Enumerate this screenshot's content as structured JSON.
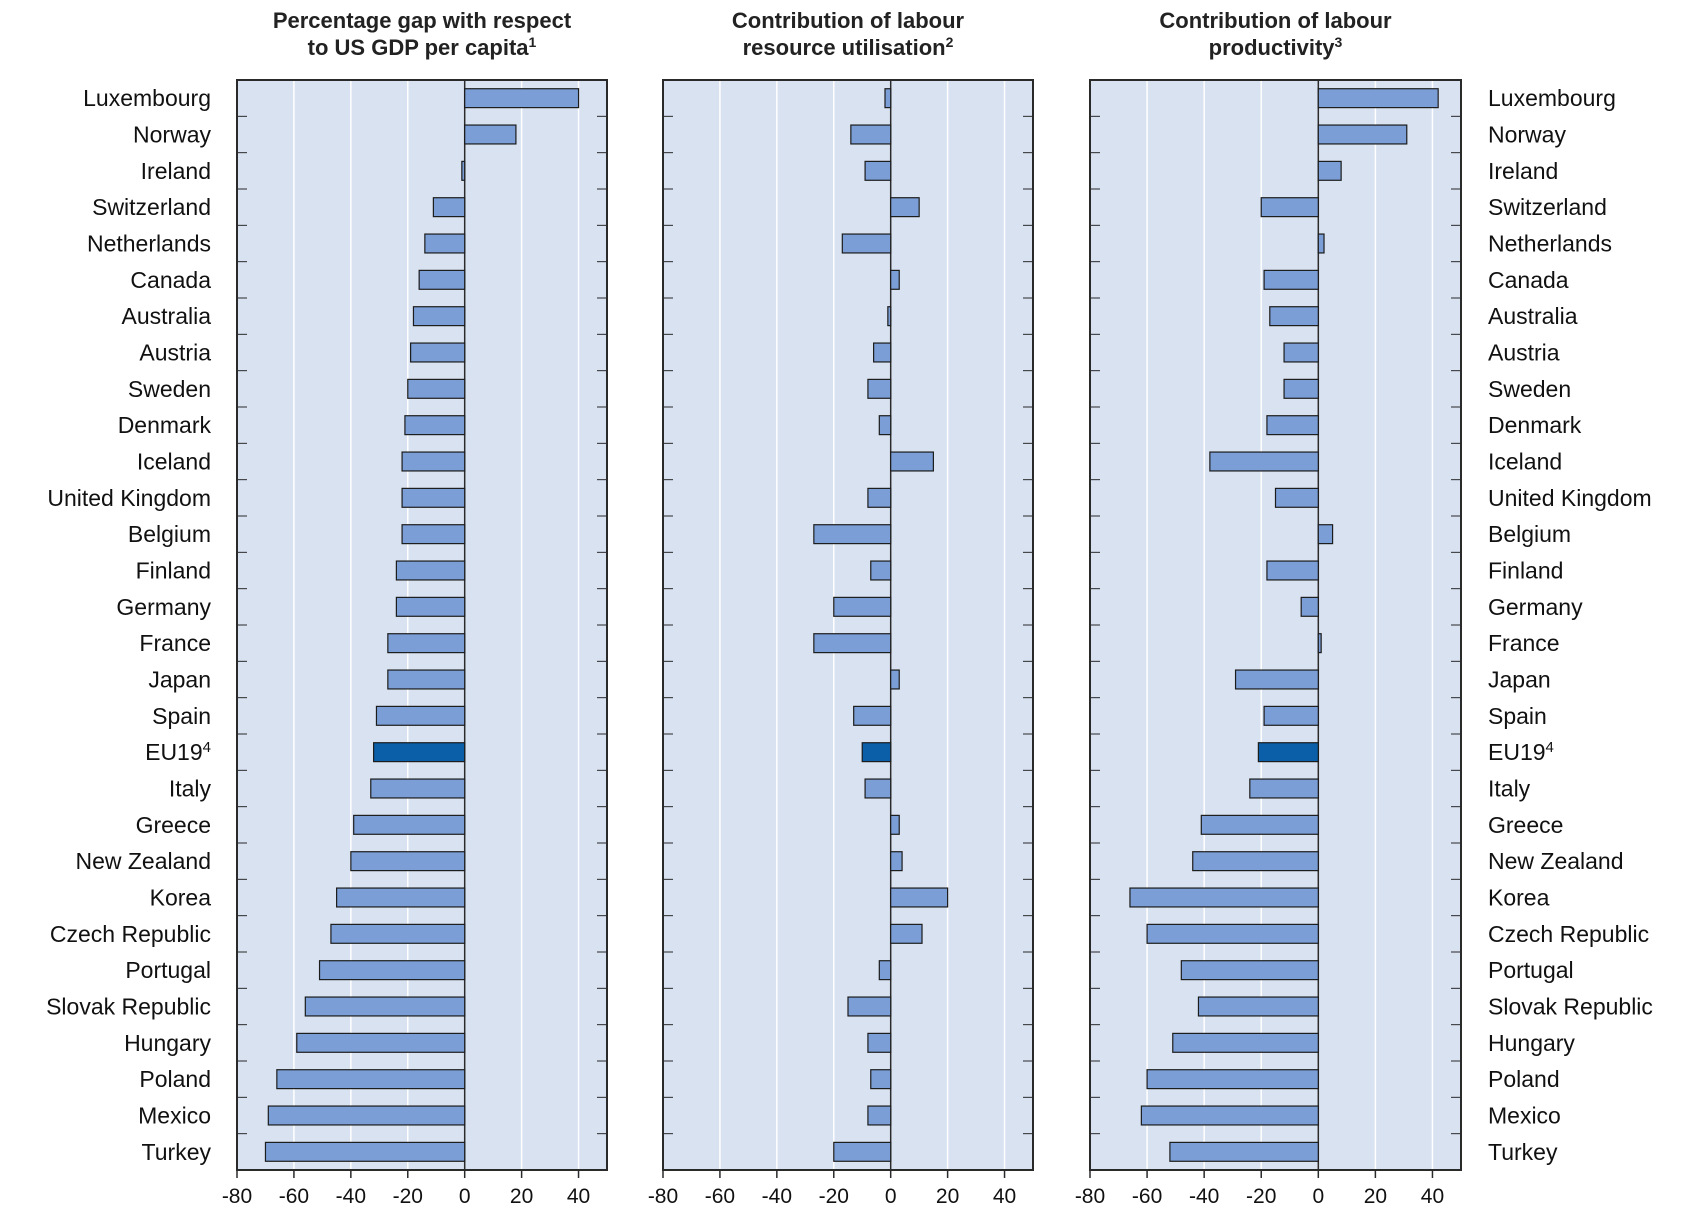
{
  "countries": [
    "Luxembourg",
    "Norway",
    "Ireland",
    "Switzerland",
    "Netherlands",
    "Canada",
    "Australia",
    "Austria",
    "Sweden",
    "Denmark",
    "Iceland",
    "United Kingdom",
    "Belgium",
    "Finland",
    "Germany",
    "France",
    "Japan",
    "Spain",
    "EU19",
    "Italy",
    "Greece",
    "New Zealand",
    "Korea",
    "Czech Republic",
    "Portugal",
    "Slovak Republic",
    "Hungary",
    "Poland",
    "Mexico",
    "Turkey"
  ],
  "highlight": {
    "country": "EU19",
    "superscript": "4"
  },
  "colors": {
    "bar": "#7b9ed6",
    "bar_highlight": "#0a5fa8",
    "plot_bg": "#d8e2f1",
    "grid": "#ffffff",
    "frame": "#2a2a2a"
  },
  "chart_data": [
    {
      "type": "bar",
      "orientation": "horizontal",
      "title_lines": [
        {
          "text": "Percentage gap with respect"
        },
        {
          "text": "to US GDP per capita",
          "sup": "1"
        }
      ],
      "xlim": [
        -80,
        50
      ],
      "xticks": [
        -80,
        -60,
        -40,
        -20,
        0,
        20,
        40
      ],
      "grid": true,
      "values": [
        40,
        18,
        -1,
        -11,
        -14,
        -16,
        -18,
        -19,
        -20,
        -21,
        -22,
        -22,
        -22,
        -24,
        -24,
        -27,
        -27,
        -31,
        -32,
        -33,
        -39,
        -40,
        -45,
        -47,
        -51,
        -56,
        -59,
        -66,
        -69,
        -70
      ]
    },
    {
      "type": "bar",
      "orientation": "horizontal",
      "title_lines": [
        {
          "text": "Contribution of labour"
        },
        {
          "text": "resource utilisation",
          "sup": "2"
        }
      ],
      "xlim": [
        -80,
        50
      ],
      "xticks": [
        -80,
        -60,
        -40,
        -20,
        0,
        20,
        40
      ],
      "grid": true,
      "values": [
        -2,
        -14,
        -9,
        10,
        -17,
        3,
        -1,
        -6,
        -8,
        -4,
        15,
        -8,
        -27,
        -7,
        -20,
        -27,
        3,
        -13,
        -10,
        -9,
        3,
        4,
        20,
        11,
        -4,
        -15,
        -8,
        -7,
        -8,
        -20
      ]
    },
    {
      "type": "bar",
      "orientation": "horizontal",
      "title_lines": [
        {
          "text": "Contribution of labour"
        },
        {
          "text": "productivity",
          "sup": "3"
        }
      ],
      "xlim": [
        -80,
        50
      ],
      "xticks": [
        -80,
        -60,
        -40,
        -20,
        0,
        20,
        40
      ],
      "grid": true,
      "values": [
        42,
        31,
        8,
        -20,
        2,
        -19,
        -17,
        -12,
        -12,
        -18,
        -38,
        -15,
        5,
        -18,
        -6,
        1,
        -29,
        -19,
        -21,
        -24,
        -41,
        -44,
        -66,
        -60,
        -48,
        -42,
        -51,
        -60,
        -62,
        -52
      ]
    }
  ]
}
